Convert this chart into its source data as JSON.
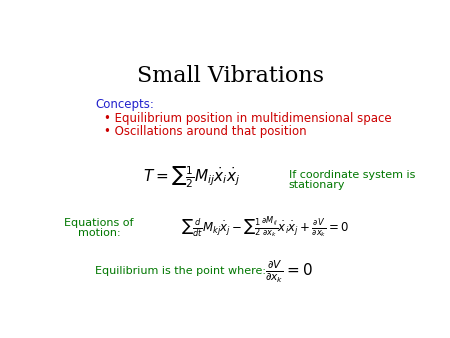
{
  "title": "Small Vibrations",
  "title_color": "#000000",
  "title_fontsize": 16,
  "bg_color": "#ffffff",
  "concepts_label": "Concepts:",
  "concepts_color": "#2222cc",
  "bullet1": "• Equilibrium position in multidimensional space",
  "bullet2": "• Oscillations around that position",
  "bullet_color": "#cc0000",
  "eq1_latex": "$T = \\sum \\frac{1}{2} M_{ij} \\dot{x}_i \\dot{x}_j$",
  "eq1_color": "#000000",
  "eq1_note_line1": "If coordinate system is",
  "eq1_note_line2": "stationary",
  "eq1_note_color": "#007700",
  "eq_motion_label_line1": "Equations of",
  "eq_motion_label_line2": "motion:",
  "eq_motion_color": "#007700",
  "eq2_latex": "$\\sum \\frac{d}{dt} M_{kj} \\dot{x}_j - \\sum \\frac{1}{2} \\frac{\\partial M_{ij}}{\\partial x_k} \\dot{x}_i \\dot{x}_j + \\frac{\\partial V}{\\partial x_k} = 0$",
  "eq2_color": "#000000",
  "eq3_label": "Equilibrium is the point where:",
  "eq3_label_color": "#007700",
  "eq3_latex": "$\\frac{\\partial V}{\\partial x_k} = 0$",
  "eq3_color": "#000000"
}
